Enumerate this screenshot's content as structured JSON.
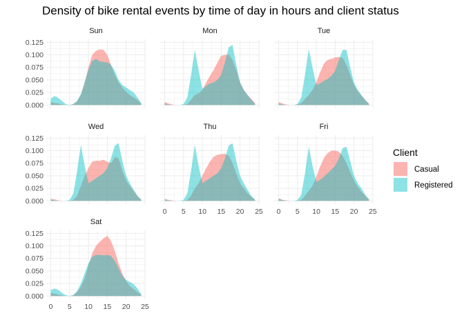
{
  "chart_data": {
    "type": "area",
    "title": "Density of bike rental events by time of day in hours and client status",
    "xlabel": "",
    "ylabel": "",
    "xlim": [
      0,
      24
    ],
    "ylim": [
      0,
      0.125
    ],
    "x_ticks": [
      0,
      5,
      10,
      15,
      20,
      25
    ],
    "y_ticks": [
      "0.000",
      "0.025",
      "0.050",
      "0.075",
      "0.100",
      "0.125"
    ],
    "grid": true,
    "legend": {
      "title": "Client",
      "position": "right",
      "entries": [
        {
          "name": "Casual",
          "color": "#F8766D"
        },
        {
          "name": "Registered",
          "color": "#00BFC4"
        }
      ]
    },
    "x": [
      0,
      1,
      2,
      3,
      4,
      5,
      6,
      7,
      8,
      9,
      10,
      11,
      12,
      13,
      14,
      15,
      16,
      17,
      18,
      19,
      20,
      21,
      22,
      23,
      24
    ],
    "facets": [
      {
        "name": "Sun",
        "series": [
          {
            "name": "Casual",
            "values": [
              0.006,
              0.004,
              0.003,
              0.001,
              0.0,
              0.0,
              0.002,
              0.008,
              0.02,
              0.045,
              0.075,
              0.1,
              0.108,
              0.111,
              0.11,
              0.1,
              0.08,
              0.06,
              0.045,
              0.035,
              0.026,
              0.02,
              0.015,
              0.01,
              0.003
            ]
          },
          {
            "name": "Registered",
            "values": [
              0.013,
              0.018,
              0.014,
              0.008,
              0.002,
              0.0,
              0.002,
              0.008,
              0.022,
              0.045,
              0.07,
              0.088,
              0.092,
              0.087,
              0.086,
              0.085,
              0.08,
              0.068,
              0.05,
              0.04,
              0.035,
              0.03,
              0.025,
              0.015,
              0.004
            ]
          }
        ]
      },
      {
        "name": "Mon",
        "series": [
          {
            "name": "Casual",
            "values": [
              0.006,
              0.003,
              0.001,
              0.0,
              0.0,
              0.0,
              0.002,
              0.01,
              0.02,
              0.023,
              0.03,
              0.045,
              0.058,
              0.07,
              0.085,
              0.098,
              0.1,
              0.1,
              0.09,
              0.07,
              0.045,
              0.03,
              0.02,
              0.012,
              0.004
            ]
          },
          {
            "name": "Registered",
            "values": [
              0.003,
              0.001,
              0.0,
              0.0,
              0.0,
              0.002,
              0.015,
              0.06,
              0.11,
              0.07,
              0.032,
              0.038,
              0.043,
              0.045,
              0.05,
              0.06,
              0.085,
              0.115,
              0.12,
              0.08,
              0.045,
              0.03,
              0.02,
              0.01,
              0.002
            ]
          }
        ]
      },
      {
        "name": "Tue",
        "series": [
          {
            "name": "Casual",
            "values": [
              0.006,
              0.003,
              0.001,
              0.0,
              0.0,
              0.001,
              0.004,
              0.012,
              0.02,
              0.03,
              0.045,
              0.065,
              0.082,
              0.09,
              0.092,
              0.095,
              0.096,
              0.094,
              0.08,
              0.06,
              0.04,
              0.028,
              0.018,
              0.01,
              0.003
            ]
          },
          {
            "name": "Registered",
            "values": [
              0.003,
              0.001,
              0.0,
              0.0,
              0.0,
              0.002,
              0.015,
              0.06,
              0.112,
              0.075,
              0.04,
              0.043,
              0.048,
              0.052,
              0.058,
              0.068,
              0.09,
              0.11,
              0.11,
              0.075,
              0.045,
              0.03,
              0.02,
              0.01,
              0.002
            ]
          }
        ]
      },
      {
        "name": "Wed",
        "series": [
          {
            "name": "Casual",
            "values": [
              0.004,
              0.003,
              0.001,
              0.0,
              0.0,
              0.0,
              0.002,
              0.01,
              0.03,
              0.05,
              0.065,
              0.078,
              0.08,
              0.08,
              0.082,
              0.078,
              0.075,
              0.087,
              0.085,
              0.06,
              0.04,
              0.03,
              0.02,
              0.01,
              0.003
            ]
          },
          {
            "name": "Registered",
            "values": [
              0.003,
              0.001,
              0.0,
              0.0,
              0.0,
              0.002,
              0.015,
              0.06,
              0.112,
              0.07,
              0.035,
              0.04,
              0.045,
              0.05,
              0.055,
              0.065,
              0.085,
              0.11,
              0.115,
              0.08,
              0.05,
              0.035,
              0.022,
              0.01,
              0.002
            ]
          }
        ]
      },
      {
        "name": "Thu",
        "series": [
          {
            "name": "Casual",
            "values": [
              0.004,
              0.002,
              0.001,
              0.0,
              0.0,
              0.0,
              0.002,
              0.01,
              0.025,
              0.035,
              0.05,
              0.065,
              0.078,
              0.088,
              0.092,
              0.093,
              0.094,
              0.09,
              0.075,
              0.055,
              0.035,
              0.025,
              0.015,
              0.008,
              0.002
            ]
          },
          {
            "name": "Registered",
            "values": [
              0.003,
              0.001,
              0.0,
              0.0,
              0.0,
              0.002,
              0.015,
              0.06,
              0.112,
              0.07,
              0.035,
              0.04,
              0.045,
              0.05,
              0.055,
              0.065,
              0.085,
              0.11,
              0.115,
              0.08,
              0.05,
              0.035,
              0.022,
              0.01,
              0.002
            ]
          }
        ]
      },
      {
        "name": "Fri",
        "series": [
          {
            "name": "Casual",
            "values": [
              0.005,
              0.002,
              0.001,
              0.0,
              0.0,
              0.0,
              0.002,
              0.01,
              0.02,
              0.03,
              0.048,
              0.068,
              0.085,
              0.095,
              0.1,
              0.1,
              0.098,
              0.09,
              0.075,
              0.058,
              0.04,
              0.028,
              0.018,
              0.01,
              0.003
            ]
          },
          {
            "name": "Registered",
            "values": [
              0.004,
              0.002,
              0.0,
              0.0,
              0.0,
              0.002,
              0.012,
              0.055,
              0.108,
              0.07,
              0.038,
              0.042,
              0.048,
              0.055,
              0.062,
              0.07,
              0.085,
              0.105,
              0.108,
              0.08,
              0.05,
              0.035,
              0.025,
              0.012,
              0.003
            ]
          }
        ]
      },
      {
        "name": "Sat",
        "series": [
          {
            "name": "Casual",
            "values": [
              0.006,
              0.005,
              0.003,
              0.001,
              0.0,
              0.0,
              0.002,
              0.008,
              0.018,
              0.035,
              0.06,
              0.085,
              0.1,
              0.108,
              0.115,
              0.12,
              0.11,
              0.09,
              0.065,
              0.045,
              0.03,
              0.02,
              0.014,
              0.008,
              0.003
            ]
          },
          {
            "name": "Registered",
            "values": [
              0.012,
              0.015,
              0.012,
              0.006,
              0.002,
              0.0,
              0.002,
              0.01,
              0.025,
              0.045,
              0.065,
              0.078,
              0.082,
              0.082,
              0.081,
              0.082,
              0.08,
              0.07,
              0.055,
              0.04,
              0.032,
              0.028,
              0.024,
              0.015,
              0.004
            ]
          }
        ]
      }
    ]
  }
}
